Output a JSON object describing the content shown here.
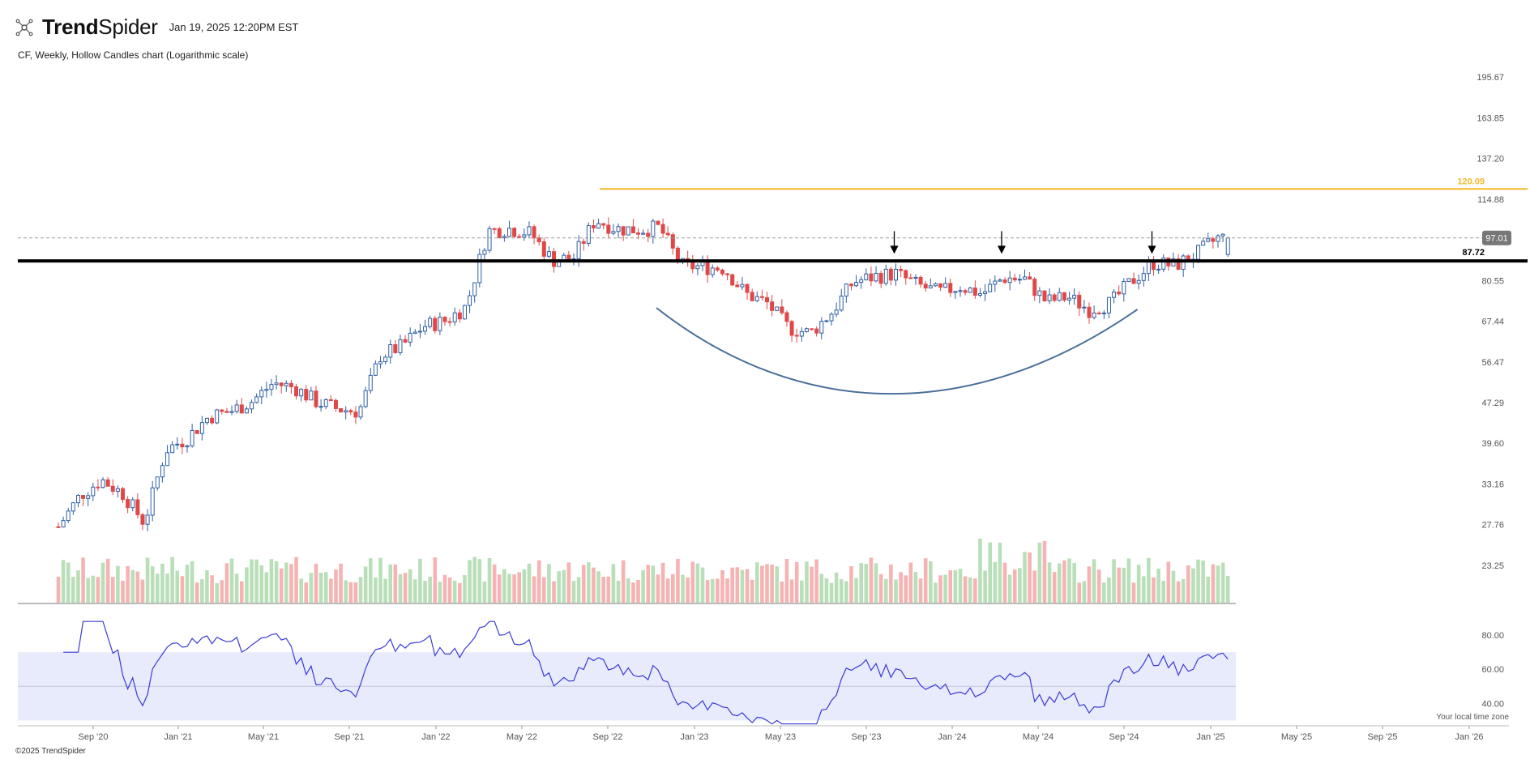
{
  "brand": {
    "name_bold": "Trend",
    "name_light": "Spider",
    "timestamp": "Jan 19, 2025 12:20PM EST"
  },
  "subtitle": "CF, Weekly, Hollow Candles chart (Logarithmic scale)",
  "footer": "©2025 TrendSpider",
  "timezone_note": "Your local time zone",
  "colors": {
    "up": "#2f5fa6",
    "down": "#e04848",
    "vol_up": "#b9dfb9",
    "vol_down": "#f6b3b3",
    "rsi_line": "#3a3ad6",
    "rsi_band": "#e8ebfb",
    "resistance": "#f6b82a",
    "support": "#000000",
    "cup": "#4a6f99",
    "arrow": "#000000"
  },
  "chart_data": {
    "type": "candlestick",
    "symbol": "CF",
    "interval": "Weekly",
    "scale": "log",
    "price_axis_ticks": [
      "195.67",
      "163.85",
      "137.20",
      "114.88",
      "97.01",
      "80.55",
      "67.44",
      "56.47",
      "47.29",
      "39.60",
      "33.16",
      "27.76",
      "23.25"
    ],
    "price_tick_values": [
      195.67,
      163.85,
      137.2,
      114.88,
      97.01,
      80.55,
      67.44,
      56.47,
      47.29,
      39.6,
      33.16,
      27.76,
      23.25
    ],
    "ylim": [
      21.5,
      205
    ],
    "x_axis_ticks": [
      "Sep '20",
      "Jan '21",
      "May '21",
      "Sep '21",
      "Jan '22",
      "May '22",
      "Sep '22",
      "Jan '23",
      "May '23",
      "Sep '23",
      "Jan '24",
      "May '24",
      "Sep '24",
      "Jan '25",
      "May '25",
      "Sep '25",
      "Jan '26"
    ],
    "rsi_axis_ticks": [
      "80.00",
      "60.00",
      "40.00"
    ],
    "rsi_band": [
      70,
      30
    ],
    "rsi_range": [
      25,
      90
    ],
    "last_price": "97.01",
    "horizontal_lines": [
      {
        "label": "120.09",
        "value": 120.09,
        "style": "solid-orange"
      },
      {
        "label": "87.72",
        "value": 87.72,
        "style": "thick-black"
      }
    ],
    "arrows_at": [
      "Oct '23",
      "Mar '24",
      "Oct '24"
    ],
    "anchors": [
      [
        "Jul '20",
        27.5
      ],
      [
        "Aug '20",
        31.5
      ],
      [
        "Sep '20",
        33.8
      ],
      [
        "Oct '20",
        31.8
      ],
      [
        "Nov '20",
        28.0
      ],
      [
        "Dec '20",
        38.5
      ],
      [
        "Jan '21",
        40.5
      ],
      [
        "Feb '21",
        44.5
      ],
      [
        "Mar '21",
        45.5
      ],
      [
        "Apr '21",
        47.5
      ],
      [
        "May '21",
        51.5
      ],
      [
        "Jun '21",
        50.5
      ],
      [
        "Jul '21",
        47.5
      ],
      [
        "Aug '21",
        46.0
      ],
      [
        "Sep '21",
        45.5
      ],
      [
        "Oct '21",
        58.0
      ],
      [
        "Nov '21",
        60.5
      ],
      [
        "Dec '21",
        66.0
      ],
      [
        "Jan '22",
        67.5
      ],
      [
        "Feb '22",
        72.0
      ],
      [
        "Mar '22",
        100.0
      ],
      [
        "Apr '22",
        101.0
      ],
      [
        "May '22",
        99.0
      ],
      [
        "Jun '22",
        88.0
      ],
      [
        "Jul '22",
        89.0
      ],
      [
        "Aug '22",
        105.0
      ],
      [
        "Sep '22",
        101.0
      ],
      [
        "Oct '22",
        100.5
      ],
      [
        "Nov '22",
        101.5
      ],
      [
        "Dec '22",
        86.0
      ],
      [
        "Jan '23",
        85.5
      ],
      [
        "Feb '23",
        85.0
      ],
      [
        "Mar '23",
        76.0
      ],
      [
        "Apr '23",
        73.0
      ],
      [
        "May '23",
        65.5
      ],
      [
        "Jun '23",
        64.0
      ],
      [
        "Jul '23",
        70.0
      ],
      [
        "Aug '23",
        80.0
      ],
      [
        "Sep '23",
        82.0
      ],
      [
        "Oct '23",
        83.0
      ],
      [
        "Nov '23",
        79.0
      ],
      [
        "Dec '23",
        76.5
      ],
      [
        "Jan '24",
        78.5
      ],
      [
        "Feb '24",
        76.0
      ],
      [
        "Mar '24",
        81.5
      ],
      [
        "Apr '24",
        81.0
      ],
      [
        "May '24",
        73.5
      ],
      [
        "Jun '24",
        75.0
      ],
      [
        "Jul '24",
        71.0
      ],
      [
        "Aug '24",
        73.0
      ],
      [
        "Sep '24",
        80.5
      ],
      [
        "Oct '24",
        87.0
      ],
      [
        "Nov '24",
        86.0
      ],
      [
        "Dec '24",
        90.5
      ],
      [
        "Jan '25",
        97.0
      ]
    ]
  }
}
